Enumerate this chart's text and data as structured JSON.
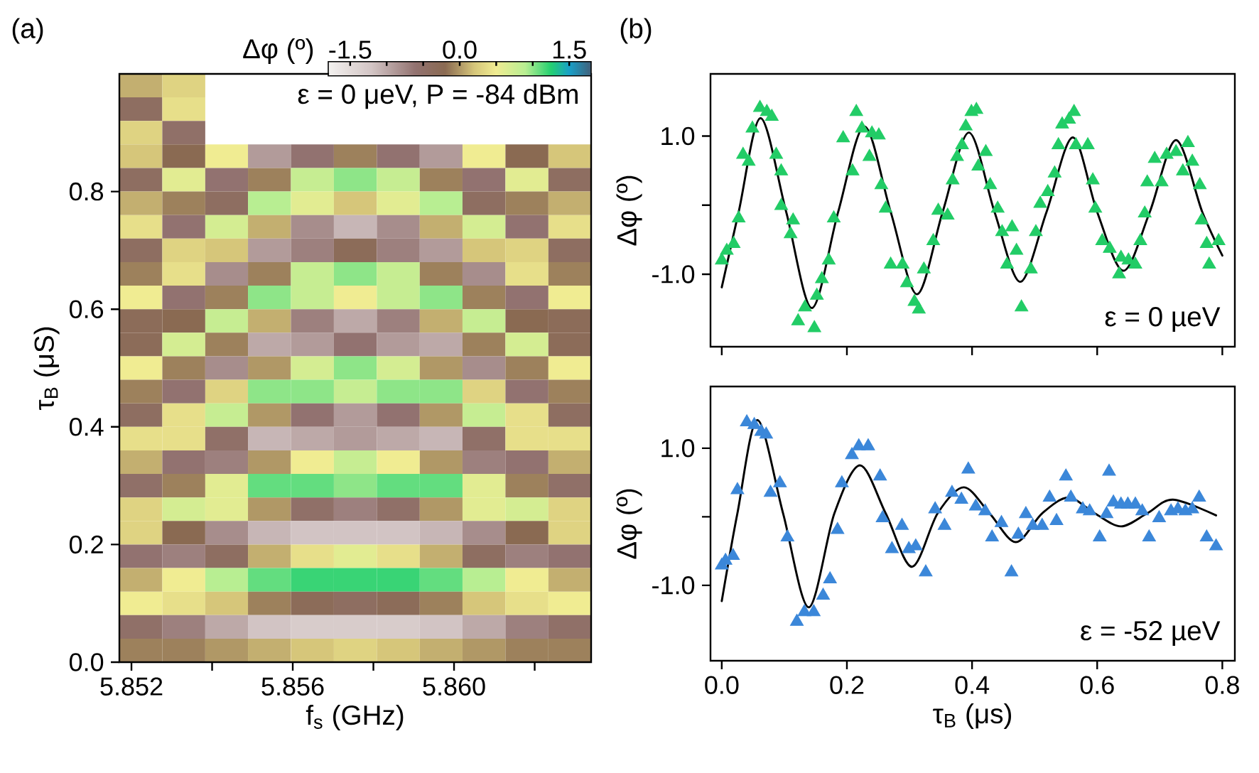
{
  "chart_data": [
    {
      "type": "heatmap",
      "xlabel": "f$_{s}$ (GHz)",
      "ylabel": "τ$_{B}$ (μS)",
      "clabel": "Δφ (º)",
      "annotations": [
        "(a)",
        "ε = 0 μeV, P = -84 dBm"
      ],
      "xlim": [
        5.8517,
        5.8634
      ],
      "xticks": [
        5.852,
        {
          "value": 5.854,
          "label": null
        },
        5.856,
        {
          "value": 5.858,
          "label": null
        },
        {
          "value": 5.86,
          "label": "5.860"
        },
        {
          "value": 5.862,
          "label": null
        }
      ],
      "ylim": [
        0,
        1.0
      ],
      "yticks": [
        {
          "value": 0,
          "label": "0.0"
        },
        0.2,
        0.4,
        0.6,
        0.8
      ],
      "clim": [
        -1.8,
        1.8
      ],
      "cticks": [
        -1.5,
        {
          "value": -1.0,
          "label": null
        },
        {
          "value": -0.5,
          "label": null
        },
        {
          "value": 0,
          "label": "0.0"
        },
        {
          "value": 0.5,
          "label": null
        },
        {
          "value": 1.0,
          "label": null
        },
        1.5
      ],
      "x": [
        5.85223,
        5.8533,
        5.85436,
        5.85542,
        5.85649,
        5.85755,
        5.85862,
        5.85968,
        5.86074,
        5.86181,
        5.86287
      ],
      "y": [
        0.98,
        0.94,
        0.9,
        0.86,
        0.82,
        0.78,
        0.74,
        0.7,
        0.66,
        0.62,
        0.58,
        0.54,
        0.5,
        0.46,
        0.42,
        0.38,
        0.34,
        0.3,
        0.26,
        0.22,
        0.18,
        0.14,
        0.1,
        0.06,
        0.02
      ],
      "cells": [
        [
          0.1,
          0.3,
          null,
          null,
          null,
          null,
          null,
          null,
          null,
          null,
          null
        ],
        [
          -0.4,
          0.4,
          null,
          null,
          null,
          null,
          null,
          null,
          null,
          null,
          null
        ],
        [
          0.3,
          -0.5,
          null,
          null,
          null,
          null,
          null,
          null,
          null,
          null,
          null
        ],
        [
          0.2,
          -0.2,
          0.5,
          -0.9,
          -0.6,
          -0.1,
          -0.6,
          -0.9,
          0.5,
          -0.2,
          0.2
        ],
        [
          -0.4,
          0.6,
          -0.6,
          -0.1,
          0.8,
          1.0,
          0.8,
          -0.1,
          -0.6,
          0.6,
          -0.4
        ],
        [
          0.1,
          -0.1,
          -0.4,
          0.9,
          0.6,
          0.2,
          0.6,
          0.9,
          -0.4,
          -0.1,
          0.1
        ],
        [
          0.4,
          -0.6,
          0.7,
          0.1,
          -0.8,
          -1.1,
          -0.8,
          0.1,
          0.7,
          -0.6,
          0.4
        ],
        [
          -0.4,
          0.3,
          0.2,
          -0.9,
          -0.7,
          -0.3,
          -0.7,
          -0.9,
          0.2,
          0.3,
          -0.4
        ],
        [
          -0.1,
          0.4,
          -0.8,
          -0.1,
          0.8,
          1.0,
          0.8,
          -0.1,
          -0.8,
          0.4,
          -0.1
        ],
        [
          0.5,
          -0.6,
          -0.1,
          1.0,
          0.8,
          0.5,
          0.8,
          1.0,
          -0.1,
          -0.6,
          0.5
        ],
        [
          -0.3,
          -0.2,
          0.8,
          0.1,
          -0.7,
          -1.0,
          -0.7,
          0.1,
          0.8,
          -0.2,
          -0.3
        ],
        [
          -0.3,
          0.7,
          -0.1,
          -1.0,
          -0.9,
          -0.6,
          -0.9,
          -1.0,
          -0.1,
          0.7,
          -0.3
        ],
        [
          0.5,
          -0.1,
          -0.8,
          0.0,
          0.7,
          1.0,
          0.7,
          0.0,
          -0.8,
          -0.1,
          0.5
        ],
        [
          -0.1,
          -0.6,
          0.3,
          1.0,
          1.0,
          0.8,
          1.0,
          1.0,
          0.3,
          -0.6,
          -0.1
        ],
        [
          -0.4,
          0.4,
          0.8,
          0.0,
          -0.6,
          -0.9,
          -0.6,
          0.0,
          0.8,
          0.4,
          -0.4
        ],
        [
          0.4,
          0.4,
          -0.5,
          -1.1,
          -1.0,
          -0.9,
          -1.0,
          -1.1,
          -0.5,
          0.4,
          0.4
        ],
        [
          0.1,
          -0.6,
          -0.7,
          0.0,
          0.5,
          0.8,
          0.5,
          0.0,
          -0.7,
          -0.6,
          0.1
        ],
        [
          -0.5,
          -0.1,
          0.6,
          1.1,
          1.1,
          1.0,
          1.1,
          1.1,
          0.6,
          -0.1,
          -0.5
        ],
        [
          0.3,
          0.7,
          0.6,
          0.0,
          -0.5,
          -0.7,
          -0.5,
          0.0,
          0.6,
          0.7,
          0.3
        ],
        [
          0.3,
          -0.2,
          -0.8,
          -1.1,
          -1.2,
          -1.2,
          -1.2,
          -1.1,
          -0.8,
          -0.2,
          0.3
        ],
        [
          -0.6,
          -0.7,
          -0.4,
          0.1,
          0.4,
          0.6,
          0.4,
          0.1,
          -0.4,
          -0.7,
          -0.6
        ],
        [
          0.1,
          0.5,
          0.9,
          1.1,
          1.2,
          1.2,
          1.2,
          1.1,
          0.9,
          0.5,
          0.1
        ],
        [
          0.5,
          0.4,
          0.2,
          -0.1,
          -0.3,
          -0.4,
          -0.3,
          -0.1,
          0.2,
          0.4,
          0.5
        ],
        [
          -0.5,
          -0.7,
          -1.0,
          -1.2,
          -1.3,
          -1.3,
          -1.3,
          -1.2,
          -1.0,
          -0.7,
          -0.5
        ],
        [
          -0.1,
          -0.1,
          0.0,
          0.1,
          0.2,
          0.3,
          0.2,
          0.1,
          0.0,
          -0.1,
          -0.1
        ]
      ]
    },
    {
      "type": "scatter",
      "ylabel": "Δφ (º)",
      "annotations": [
        "(b)",
        "ε = 0 µeV"
      ],
      "tick_labels": "y",
      "xlim": [
        -0.018,
        0.82
      ],
      "xticks": [
        {
          "value": 0,
          "label": null
        },
        {
          "value": 0.2,
          "label": null
        },
        {
          "value": 0.4,
          "label": null
        },
        {
          "value": 0.6,
          "label": null
        },
        {
          "value": 0.8,
          "label": null
        }
      ],
      "ylim": [
        -2.05,
        1.9
      ],
      "yticks": [
        {
          "value": -1.0,
          "label": "-1.0"
        },
        {
          "value": 0,
          "label": null
        },
        {
          "value": 1.0,
          "label": "1.0"
        }
      ],
      "series": [
        {
          "type": "scatter",
          "marker": "triangle",
          "color": "#22cc66",
          "x": [
            0.0,
            0.008,
            0.019,
            0.027,
            0.034,
            0.043,
            0.049,
            0.061,
            0.072,
            0.08,
            0.087,
            0.095,
            0.095,
            0.114,
            0.11,
            0.122,
            0.133,
            0.148,
            0.152,
            0.16,
            0.171,
            0.179,
            0.194,
            0.209,
            0.215,
            0.224,
            0.236,
            0.24,
            0.251,
            0.255,
            0.262,
            0.27,
            0.289,
            0.296,
            0.308,
            0.315,
            0.323,
            0.338,
            0.346,
            0.361,
            0.369,
            0.376,
            0.384,
            0.39,
            0.399,
            0.407,
            0.422,
            0.41,
            0.429,
            0.441,
            0.448,
            0.456,
            0.464,
            0.471,
            0.479,
            0.494,
            0.502,
            0.509,
            0.521,
            0.532,
            0.538,
            0.544,
            0.555,
            0.563,
            0.566,
            0.585,
            0.593,
            0.597,
            0.608,
            0.62,
            0.635,
            0.638,
            0.65,
            0.661,
            0.669,
            0.676,
            0.68,
            0.692,
            0.703,
            0.711,
            0.726,
            0.737,
            0.745,
            0.752,
            0.764,
            0.767,
            0.775,
            0.779,
            0.794
          ],
          "values": [
            -0.8,
            -0.66,
            -0.56,
            -0.19,
            0.73,
            0.63,
            1.11,
            1.41,
            1.35,
            1.28,
            0.73,
            0.49,
            -0.01,
            -0.22,
            -0.42,
            -1.68,
            -1.48,
            -1.78,
            -1.31,
            -1.07,
            -0.8,
            -0.19,
            0.97,
            0.49,
            1.35,
            1.11,
            0.7,
            1.04,
            1.01,
            0.29,
            -0.05,
            -0.86,
            -0.86,
            -1.13,
            -1.4,
            -1.51,
            -0.93,
            -0.52,
            -0.08,
            -0.15,
            0.36,
            0.7,
            0.87,
            1.14,
            1.35,
            1.38,
            0.77,
            0.56,
            0.29,
            -0.05,
            -0.39,
            -0.86,
            -0.32,
            -0.66,
            -1.48,
            -0.93,
            -0.39,
            0.02,
            0.19,
            0.46,
            0.87,
            1.17,
            1.24,
            1.35,
            0.87,
            0.87,
            0.36,
            -0.05,
            -0.52,
            -0.63,
            -1.0,
            -0.76,
            -0.8,
            -0.86,
            -0.52,
            -0.12,
            0.33,
            0.67,
            0.33,
            0.73,
            0.77,
            0.49,
            0.9,
            0.63,
            0.29,
            -0.22,
            -0.56,
            -0.86,
            -0.52
          ]
        },
        {
          "type": "line",
          "marker": "none",
          "line_style": "solid",
          "color": "#000000",
          "x": [
            0,
            0.027,
            0.062,
            0.103,
            0.144,
            0.186,
            0.228,
            0.27,
            0.312,
            0.353,
            0.395,
            0.436,
            0.477,
            0.519,
            0.561,
            0.6,
            0.642,
            0.684,
            0.726,
            0.768,
            0.8
          ],
          "values": [
            -1.19,
            -0.1,
            1.26,
            -0.1,
            -1.49,
            -0.1,
            1.14,
            -0.1,
            -1.29,
            -0.1,
            1.05,
            -0.1,
            -1.11,
            -0.1,
            0.98,
            -0.1,
            -0.95,
            -0.1,
            0.94,
            -0.1,
            -0.73
          ]
        }
      ]
    },
    {
      "type": "scatter",
      "xlabel": "τ$_{B}$ (μs)",
      "ylabel": "Δφ (º)",
      "annotations": [
        "ε = -52 µeV"
      ],
      "xlim": [
        -0.018,
        0.82
      ],
      "xticks": [
        {
          "value": 0,
          "label": "0.0"
        },
        0.2,
        0.4,
        0.6,
        0.8
      ],
      "ylim": [
        -2.1,
        1.9
      ],
      "yticks": [
        {
          "value": -1.0,
          "label": "-1.0"
        },
        {
          "value": 0,
          "label": null
        },
        {
          "value": 1.0,
          "label": "1.0"
        }
      ],
      "series": [
        {
          "type": "scatter",
          "marker": "triangle",
          "color": "#3b87d9",
          "x": [
            0.0,
            0.006,
            0.018,
            0.025,
            0.04,
            0.052,
            0.063,
            0.071,
            0.078,
            0.093,
            0.105,
            0.12,
            0.132,
            0.147,
            0.162,
            0.173,
            0.185,
            0.192,
            0.208,
            0.219,
            0.234,
            0.253,
            0.257,
            0.272,
            0.288,
            0.299,
            0.31,
            0.326,
            0.341,
            0.356,
            0.368,
            0.383,
            0.394,
            0.406,
            0.421,
            0.432,
            0.447,
            0.463,
            0.474,
            0.486,
            0.497,
            0.512,
            0.524,
            0.535,
            0.55,
            0.558,
            0.577,
            0.588,
            0.604,
            0.615,
            0.619,
            0.626,
            0.638,
            0.649,
            0.661,
            0.672,
            0.683,
            0.699,
            0.718,
            0.729,
            0.741,
            0.752,
            0.763,
            0.775,
            0.79
          ],
          "values": [
            -0.71,
            -0.64,
            -0.57,
            0.39,
            1.38,
            1.34,
            1.24,
            1.2,
            0.35,
            0.49,
            -0.3,
            -1.53,
            -1.39,
            -1.39,
            -1.15,
            -0.91,
            -0.19,
            0.49,
            0.9,
            1.03,
            1.03,
            0.59,
            -0.02,
            -0.47,
            -0.13,
            -0.47,
            -0.43,
            -0.81,
            0.11,
            -0.13,
            0.35,
            0.25,
            0.69,
            0.15,
            0.08,
            -0.3,
            -0.09,
            -0.81,
            -0.26,
            0.04,
            -0.13,
            -0.13,
            0.28,
            -0.06,
            0.59,
            0.28,
            0.11,
            0.08,
            -0.3,
            0.04,
            0.66,
            0.21,
            0.18,
            0.18,
            0.18,
            0.08,
            -0.3,
            -0.02,
            0.08,
            0.11,
            0.08,
            0.11,
            0.28,
            -0.3,
            -0.43
          ]
        },
        {
          "type": "line",
          "marker": "none",
          "line_style": "solid",
          "color": "#000000",
          "x": [
            0,
            0.025,
            0.057,
            0.098,
            0.139,
            0.18,
            0.221,
            0.262,
            0.304,
            0.345,
            0.387,
            0.428,
            0.47,
            0.512,
            0.554,
            0.596,
            0.638,
            0.68,
            0.721,
            0.79
          ],
          "values": [
            -1.23,
            0.05,
            1.41,
            0.05,
            -1.32,
            0.05,
            0.75,
            0.05,
            -0.73,
            0.05,
            0.43,
            0.05,
            -0.37,
            0.05,
            0.28,
            0.05,
            -0.14,
            0.05,
            0.25,
            0.02
          ]
        }
      ]
    }
  ]
}
